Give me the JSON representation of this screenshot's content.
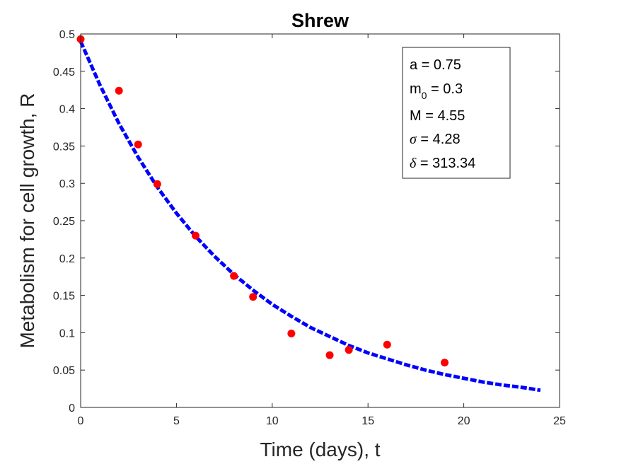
{
  "chart_data": {
    "type": "scatter",
    "title": "Shrew",
    "xlabel": "Time (days), t",
    "ylabel": "Metabolism for cell growth, R",
    "xlim": [
      0,
      25
    ],
    "ylim": [
      0,
      0.5
    ],
    "xticks": [
      0,
      5,
      10,
      15,
      20,
      25
    ],
    "xtick_labels": [
      "0",
      "5",
      "10",
      "15",
      "20",
      "25"
    ],
    "yticks": [
      0,
      0.05,
      0.1,
      0.15,
      0.2,
      0.25,
      0.3,
      0.35,
      0.4,
      0.45,
      0.5
    ],
    "ytick_labels": [
      "0",
      "0.05",
      "0.1",
      "0.15",
      "0.2",
      "0.25",
      "0.3",
      "0.35",
      "0.4",
      "0.45",
      "0.5"
    ],
    "grid": false,
    "series": [
      {
        "kind": "points",
        "color": "#ff0000",
        "x": [
          0,
          2,
          3,
          4,
          6,
          8,
          9,
          11,
          13,
          14,
          16,
          19
        ],
        "y": [
          0.493,
          0.424,
          0.352,
          0.299,
          0.23,
          0.176,
          0.148,
          0.099,
          0.07,
          0.077,
          0.084,
          0.06
        ]
      },
      {
        "kind": "curve",
        "style": "dashed",
        "color": "#0000ff",
        "x": [
          0,
          1,
          2,
          3,
          4,
          5,
          6,
          7,
          8,
          9,
          10,
          11,
          12,
          13,
          14,
          15,
          16,
          17,
          18,
          19,
          20,
          21,
          22,
          23,
          24
        ],
        "y": [
          0.49,
          0.432,
          0.38,
          0.335,
          0.295,
          0.26,
          0.229,
          0.202,
          0.178,
          0.157,
          0.138,
          0.122,
          0.107,
          0.095,
          0.083,
          0.073,
          0.065,
          0.057,
          0.05,
          0.044,
          0.039,
          0.034,
          0.03,
          0.027,
          0.023
        ]
      }
    ],
    "legend": {
      "placement": "top-right",
      "entries": [
        {
          "main": "a = 0.75"
        },
        {
          "main": "m",
          "sub": "0",
          "rest": " = 0.3"
        },
        {
          "main": "M = 4.55"
        },
        {
          "greek": "σ",
          "rest": " = 4.28"
        },
        {
          "greek": "δ",
          "rest": " = 313.34"
        }
      ]
    }
  }
}
